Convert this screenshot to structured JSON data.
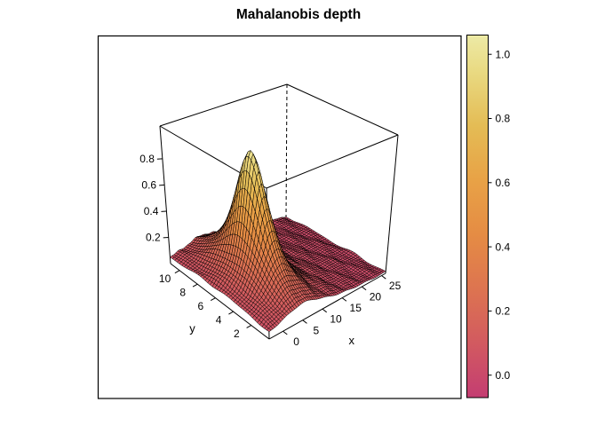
{
  "title": "Mahalanobis depth",
  "chart_data": {
    "type": "surface3d",
    "title": "Mahalanobis depth",
    "xlabel": "x",
    "ylabel": "y",
    "zlabel": "",
    "x_range": [
      -3.5,
      26
    ],
    "y_range": [
      0,
      11
    ],
    "z_range": [
      0,
      1.05
    ],
    "x_ticks": [
      0,
      5,
      10,
      15,
      20,
      25
    ],
    "y_ticks": [
      2,
      4,
      6,
      8,
      10
    ],
    "z_ticks": [
      0.2,
      0.4,
      0.6,
      0.8
    ],
    "grid_on": false,
    "surface": {
      "description": "Mahalanobis depth surface: single sharp unimodal peak (depth ~1 at the data mean) over a nearly flat plane of depth ~0.02-0.06",
      "formula": "z = 1 / (1 + (x-5)^2/6 + (y-5.5)^2/4.2)",
      "peak": {
        "x": 5,
        "y": 5.5,
        "z": 1.0
      },
      "spread": {
        "sx2": 6,
        "sy2": 4.2
      },
      "baseline_z": 0.02,
      "grid_nx": 59,
      "grid_ny": 42
    },
    "hidden_edge_style": "dashed",
    "mesh_line_color": "#000000",
    "background": "#ffffff",
    "colorbar": {
      "position": "right",
      "tick_labels": [
        "1.0",
        "0.8",
        "0.6",
        "0.4",
        "0.2",
        "0.0"
      ],
      "tick_values": [
        1.0,
        0.8,
        0.6,
        0.4,
        0.2,
        0.0
      ],
      "value_range": [
        -0.07,
        1.06
      ],
      "palette": [
        {
          "pos": 0.0,
          "color": "#c43d72"
        },
        {
          "pos": 0.15,
          "color": "#d25a60"
        },
        {
          "pos": 0.3,
          "color": "#dd7450"
        },
        {
          "pos": 0.45,
          "color": "#e58c44"
        },
        {
          "pos": 0.6,
          "color": "#e8a246"
        },
        {
          "pos": 0.75,
          "color": "#e4bc55"
        },
        {
          "pos": 0.9,
          "color": "#e9da82"
        },
        {
          "pos": 1.0,
          "color": "#edeaa6"
        }
      ]
    }
  }
}
